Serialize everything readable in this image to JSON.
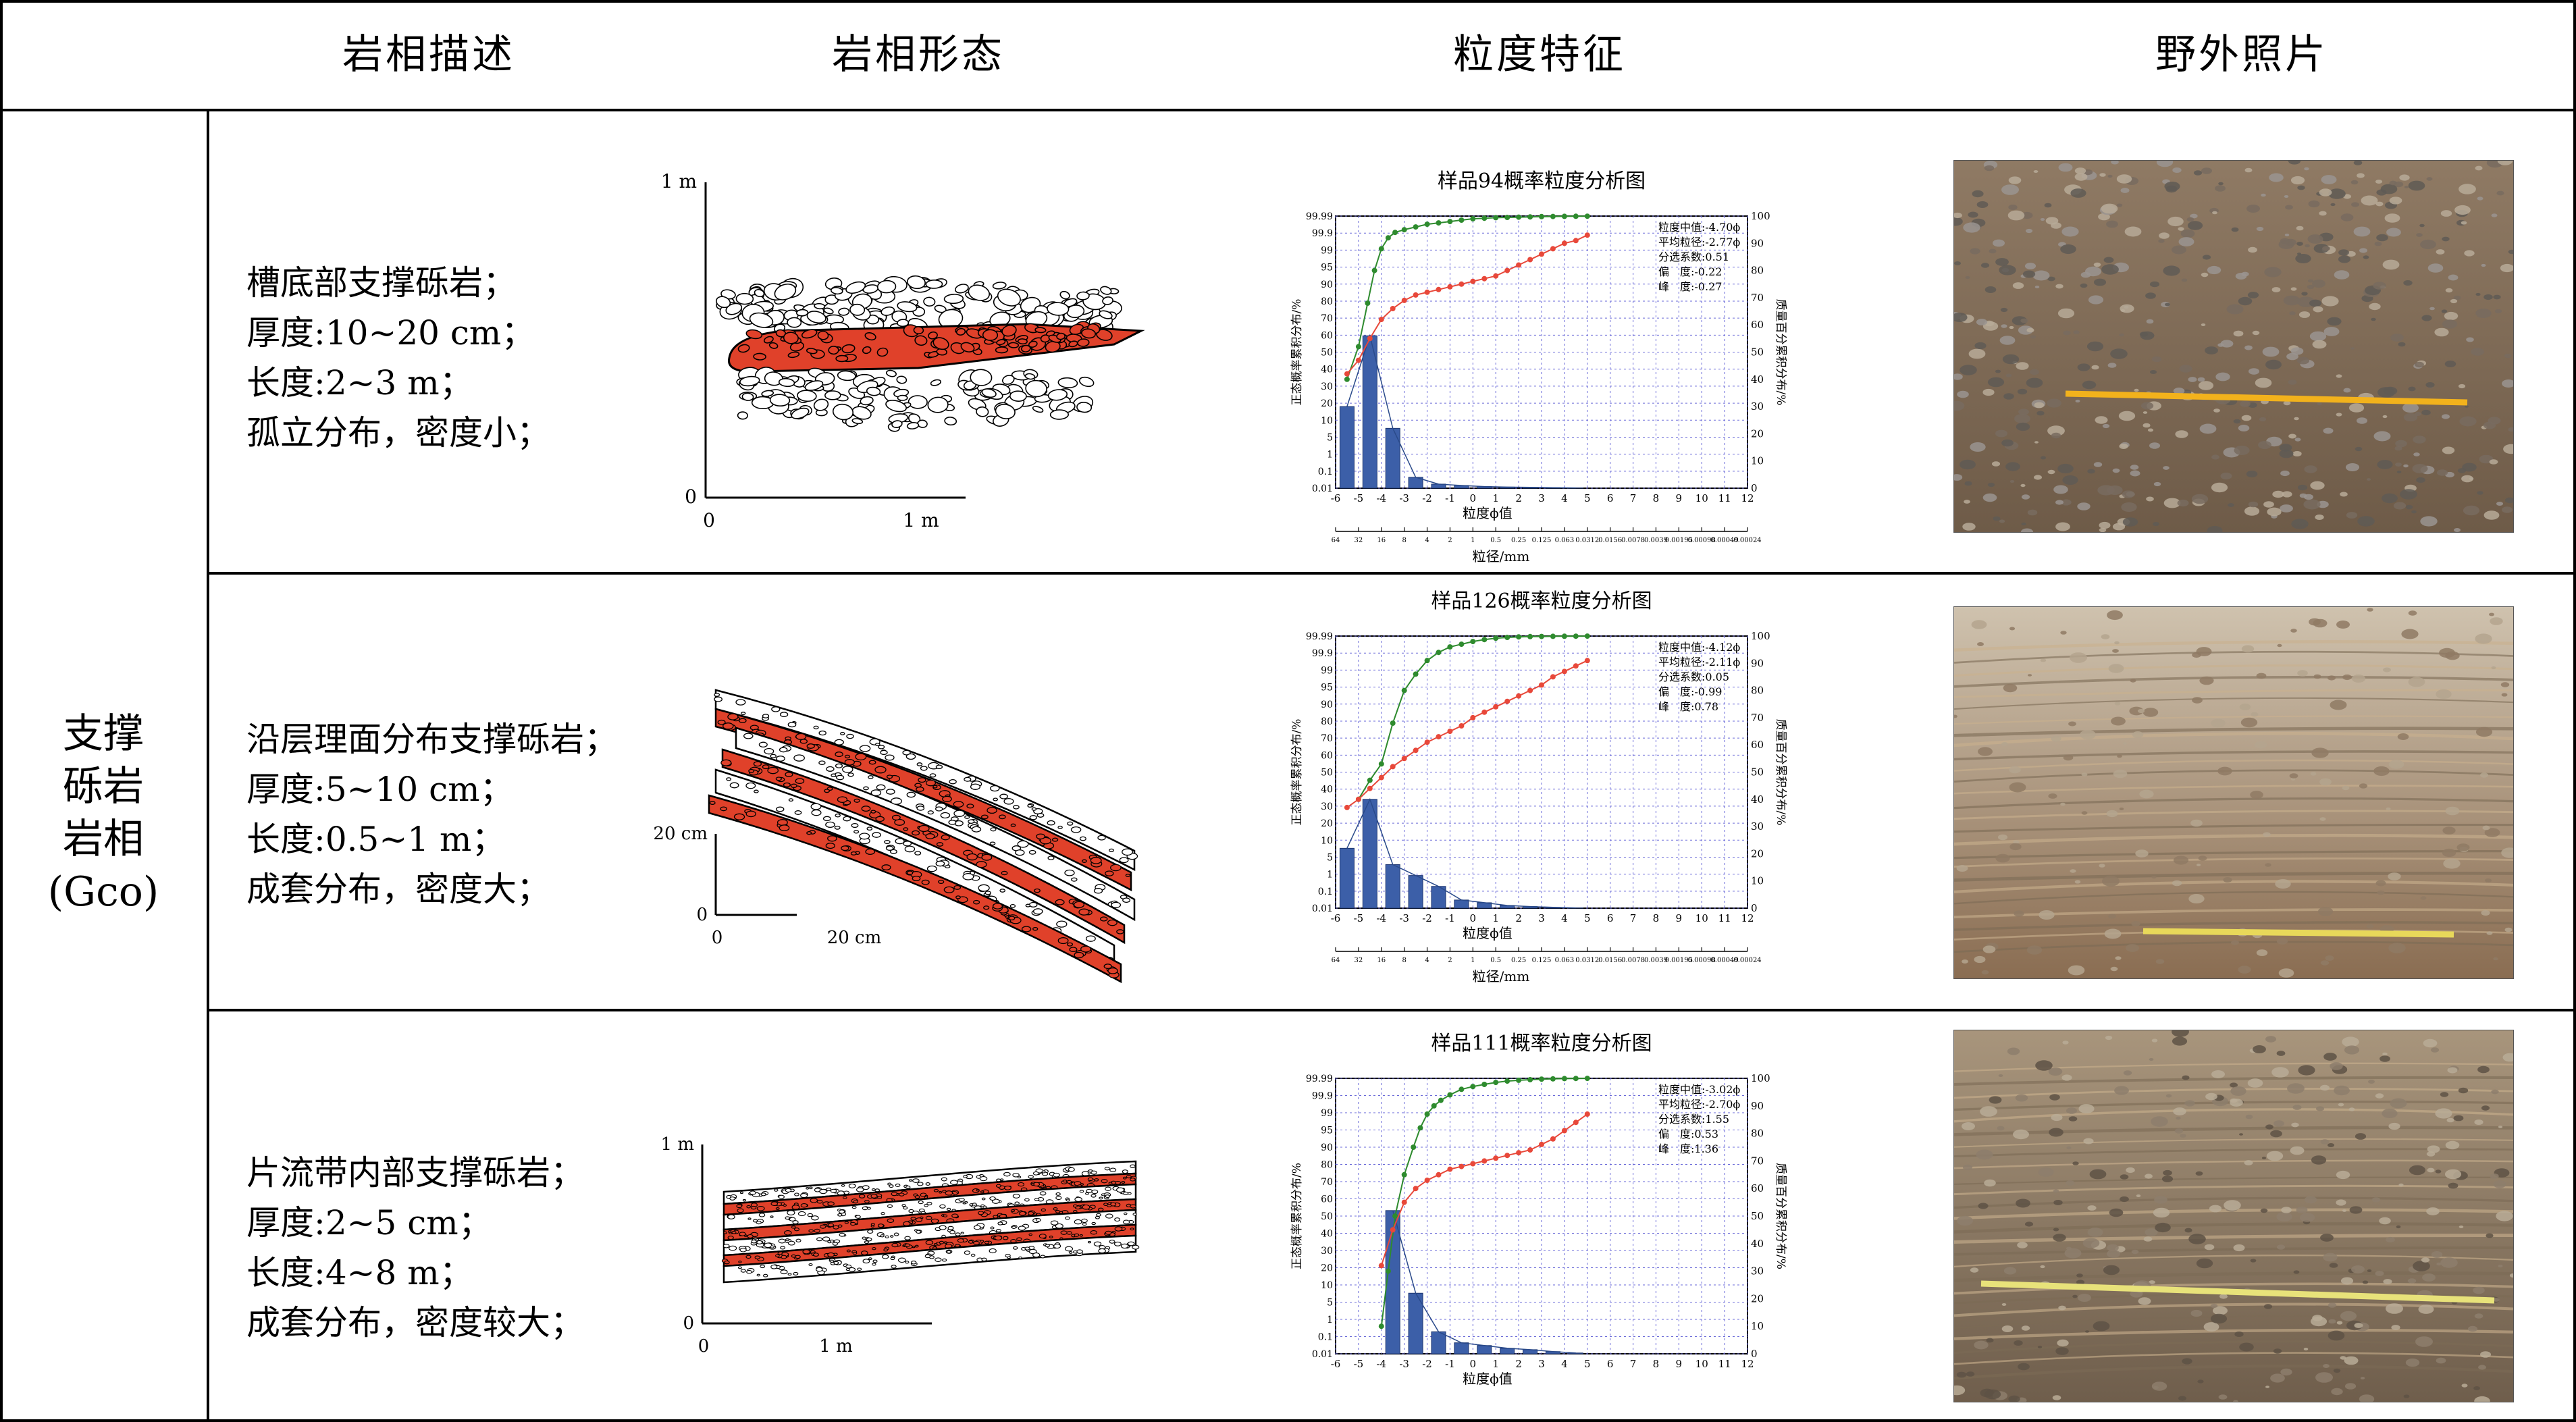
{
  "header": {
    "col1": "岩相描述",
    "col2": "岩相形态",
    "col3": "粒度特征",
    "col4": "野外照片"
  },
  "group": {
    "line1": "支撑",
    "line2": "砾岩",
    "line3": "岩相",
    "line4": "(Gco)"
  },
  "rows": [
    {
      "desc": [
        "槽底部支撑砾岩；",
        "厚度:10~20 cm；",
        "长度:2~3 m；",
        "孤立分布，密度小；"
      ],
      "morph": {
        "y_top": "1 m",
        "y_zero": "0",
        "x_zero": "0",
        "x_end": "1 m"
      }
    },
    {
      "desc": [
        "沿层理面分布支撑砾岩；",
        "厚度:5~10 cm；",
        "长度:0.5~1 m；",
        "成套分布，密度大；"
      ],
      "morph": {
        "y_top": "20 cm",
        "y_zero": "0",
        "x_zero": "0",
        "x_end": "20 cm"
      }
    },
    {
      "desc": [
        "片流带内部支撑砾岩；",
        "厚度:2~5 cm；",
        "长度:4~8 m；",
        "成套分布，密度较大；"
      ],
      "morph": {
        "y_top": "1 m",
        "y_zero": "0",
        "x_zero": "0",
        "x_end": "1 m"
      }
    }
  ],
  "colors": {
    "gravel_red": "#e0412a",
    "bar_blue": "#3c5fa8",
    "cumulative_green": "#2e8b2e",
    "probability_red": "#e8483a",
    "grid_blue": "#6a6ad8"
  },
  "chart_data": [
    {
      "type": "bar",
      "title": "样品94概率粒度分析图",
      "xlabel": "粒度ϕ值",
      "x2label": "粒径/mm",
      "ylabel_left": "正态概率累积分布/%",
      "ylabel_right": "质量百分累积分布/%",
      "x_ticks": [
        -6,
        -5,
        -4,
        -3,
        -2,
        -1,
        0,
        1,
        2,
        3,
        4,
        5,
        6,
        7,
        8,
        9,
        10,
        11,
        12
      ],
      "mm_ticks": [
        "64",
        "32",
        "16",
        "8",
        "4",
        "2",
        "1",
        "0.5",
        "0.25",
        "0.125",
        "0.063",
        "0.0312",
        "0.0156",
        "0.0078",
        "0.0039",
        "0.00195",
        "0.00098",
        "0.00049",
        "0.00024"
      ],
      "y_left_ticks": [
        "0.01",
        "0.1",
        "1",
        "5",
        "10",
        "20",
        "30",
        "40",
        "50",
        "60",
        "70",
        "80",
        "90",
        "95",
        "99",
        "99.9",
        "99.99"
      ],
      "y_right_ticks": [
        0,
        10,
        20,
        30,
        40,
        50,
        60,
        70,
        80,
        90,
        100
      ],
      "xlim": [
        -6,
        12
      ],
      "stats": [
        "粒度中值:-4.70ϕ",
        "平均粒径:-2.77ϕ",
        "分选系数:0.51",
        "偏　度:-0.22",
        "峰　度:-0.27"
      ],
      "bars": {
        "x": [
          -5.5,
          -4.5,
          -3.5,
          -2.5,
          -1.5,
          -0.5,
          0.5,
          1.5,
          2.5,
          3.5,
          4.5
        ],
        "values": [
          30,
          56,
          22,
          4,
          1.5,
          1,
          0.6,
          0.4,
          0.3,
          0.2,
          0.1
        ]
      },
      "series": [
        {
          "name": "",
          "x": [
            -5.5,
            -5,
            -4.6,
            -4.3,
            -4,
            -3.7,
            -3.4,
            -3,
            -2.5,
            -2,
            -1.5,
            -1,
            -0.5,
            0,
            0.5,
            1,
            1.5,
            2,
            2.5,
            3,
            3.5,
            4,
            4.5,
            5
          ],
          "values": [
            40,
            52,
            68,
            80,
            88,
            92,
            94,
            95,
            96,
            97,
            97.5,
            98,
            98.5,
            99,
            99.2,
            99.4,
            99.5,
            99.6,
            99.7,
            99.8,
            99.85,
            99.9,
            99.93,
            99.95
          ]
        },
        {
          "name": "",
          "x": [
            -5.5,
            -5,
            -4.5,
            -4,
            -3.5,
            -3,
            -2.5,
            -2,
            -1.5,
            -1,
            -0.5,
            0,
            0.5,
            1,
            1.5,
            2,
            2.5,
            3,
            3.5,
            4,
            4.5,
            5
          ],
          "values": [
            42,
            47,
            55,
            62,
            66,
            69,
            71,
            72,
            73,
            74,
            75,
            76,
            77,
            78,
            80,
            82,
            84,
            86,
            88,
            90,
            91,
            93
          ]
        }
      ]
    },
    {
      "type": "bar",
      "title": "样品126概率粒度分析图",
      "xlabel": "粒度ϕ值",
      "x2label": "粒径/mm",
      "ylabel_left": "正态概率累积分布/%",
      "ylabel_right": "质量百分累积分布/%",
      "x_ticks": [
        -6,
        -5,
        -4,
        -3,
        -2,
        -1,
        0,
        1,
        2,
        3,
        4,
        5,
        6,
        7,
        8,
        9,
        10,
        11,
        12
      ],
      "mm_ticks": [
        "64",
        "32",
        "16",
        "8",
        "4",
        "2",
        "1",
        "0.5",
        "0.25",
        "0.125",
        "0.063",
        "0.0312",
        "0.0156",
        "0.0078",
        "0.0039",
        "0.00195",
        "0.00098",
        "0.00049",
        "0.00024"
      ],
      "y_left_ticks": [
        "0.01",
        "0.1",
        "1",
        "5",
        "10",
        "20",
        "30",
        "40",
        "50",
        "60",
        "70",
        "80",
        "90",
        "95",
        "99",
        "99.9",
        "99.99"
      ],
      "y_right_ticks": [
        0,
        10,
        20,
        30,
        40,
        50,
        60,
        70,
        80,
        90,
        100
      ],
      "xlim": [
        -6,
        12
      ],
      "stats": [
        "粒度中值:-4.12ϕ",
        "平均粒径:-2.11ϕ",
        "分选系数:0.05",
        "偏　度:-0.99",
        "峰　度:0.78"
      ],
      "bars": {
        "x": [
          -5.5,
          -4.5,
          -3.5,
          -2.5,
          -1.5,
          -0.5,
          0.5,
          1.5,
          2.5,
          3.5,
          4.5
        ],
        "values": [
          22,
          40,
          16,
          12,
          8,
          3,
          2,
          1,
          0.6,
          0.3,
          0.1
        ]
      },
      "series": [
        {
          "name": "",
          "x": [
            -5,
            -4.5,
            -4,
            -3.5,
            -3,
            -2.5,
            -2,
            -1.5,
            -1,
            -0.5,
            0,
            0.5,
            1,
            1.5,
            2,
            2.5,
            3,
            3.5,
            4,
            4.5,
            5
          ],
          "values": [
            40,
            47,
            53,
            68,
            80,
            86,
            91,
            94,
            96,
            97,
            98,
            98.7,
            99.2,
            99.5,
            99.7,
            99.8,
            99.85,
            99.9,
            99.93,
            99.95,
            99.97
          ]
        },
        {
          "name": "",
          "x": [
            -5.5,
            -5,
            -4.5,
            -4,
            -3.5,
            -3,
            -2.5,
            -2,
            -1.5,
            -1,
            -0.5,
            0,
            0.5,
            1,
            1.5,
            2,
            2.5,
            3,
            3.5,
            4,
            4.5,
            5
          ],
          "values": [
            37,
            40,
            44,
            48,
            52,
            55,
            58,
            61,
            63,
            65,
            67,
            70,
            72,
            74,
            76,
            78,
            80,
            82,
            85,
            87,
            89,
            91
          ]
        }
      ]
    },
    {
      "type": "bar",
      "title": "样品111概率粒度分析图",
      "xlabel": "粒度ϕ值",
      "ylabel_left": "正态概率累积分布/%",
      "ylabel_right": "质量百分累积分布/%",
      "x_ticks": [
        -6,
        -5,
        -4,
        -3,
        -2,
        -1,
        0,
        1,
        2,
        3,
        4,
        5,
        6,
        7,
        8,
        9,
        10,
        11,
        12
      ],
      "y_left_ticks": [
        "0.01",
        "0.1",
        "1",
        "5",
        "10",
        "20",
        "30",
        "40",
        "50",
        "60",
        "70",
        "80",
        "90",
        "95",
        "99",
        "99.9",
        "99.99"
      ],
      "y_right_ticks": [
        0,
        10,
        20,
        30,
        40,
        50,
        60,
        70,
        80,
        90,
        100
      ],
      "xlim": [
        -6,
        12
      ],
      "stats": [
        "粒度中值:-3.02ϕ",
        "平均粒径:-2.70ϕ",
        "分选系数:1.55",
        "偏　度:0.53",
        "峰　度:1.36"
      ],
      "bars": {
        "x": [
          -3.5,
          -2.5,
          -1.5,
          -0.5,
          0.5,
          1.5,
          2.5,
          3.5,
          4.5
        ],
        "values": [
          52,
          22,
          8,
          4,
          3,
          2,
          1.5,
          0.8,
          0.3
        ]
      },
      "series": [
        {
          "name": "",
          "x": [
            -4,
            -3.7,
            -3.4,
            -3,
            -2.6,
            -2.3,
            -2,
            -1.7,
            -1.4,
            -1,
            -0.5,
            0,
            0.5,
            1,
            1.5,
            2,
            2.5,
            3,
            3.5,
            4,
            4.5,
            5
          ],
          "values": [
            10,
            30,
            50,
            65,
            75,
            82,
            87,
            90,
            92,
            94,
            96,
            97,
            97.8,
            98.5,
            99,
            99.3,
            99.5,
            99.7,
            99.8,
            99.9,
            99.95,
            99.98
          ]
        },
        {
          "name": "",
          "x": [
            -4,
            -3.5,
            -3,
            -2.5,
            -2,
            -1.5,
            -1,
            -0.5,
            0,
            0.5,
            1,
            1.5,
            2,
            2.5,
            3,
            3.5,
            4,
            4.5,
            5
          ],
          "values": [
            32,
            45,
            55,
            60,
            63,
            65,
            67,
            68,
            69,
            70,
            71,
            72,
            73,
            74,
            76,
            78,
            81,
            84,
            87
          ]
        }
      ]
    }
  ]
}
